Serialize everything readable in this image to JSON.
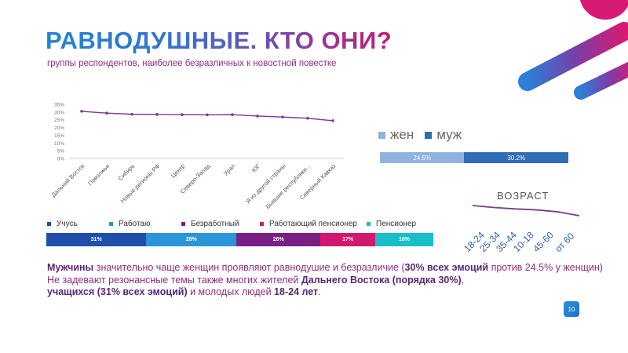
{
  "slide": {
    "title": "РАВНОДУШНЫЕ. КТО ОНИ?",
    "subtitle": "группы респондентов, наиболее безразличных к новостной повестке",
    "page_number": "10",
    "colors": {
      "blue": "#1f86d0",
      "purple": "#8e2d7f",
      "magenta": "#c21c77",
      "cyan": "#18bfc9"
    }
  },
  "chart_data": [
    {
      "type": "line",
      "categories": [
        "Дальний Восток",
        "Поволжье",
        "Сибирь",
        "Новые регионы РФ",
        "Центр",
        "Северо-Запад",
        "Урал",
        "ЮГ",
        "Я из другой страны",
        "Бывшие республики...",
        "Северный Кавказ"
      ],
      "values": [
        30.5,
        29.3,
        28.6,
        28.5,
        28.3,
        28.2,
        28.3,
        27.4,
        26.8,
        26.0,
        24.4
      ],
      "ylim": [
        0,
        35
      ],
      "y_ticks": [
        "35%",
        "30%",
        "25%",
        "20%",
        "15%",
        "10%",
        "5%",
        "0%"
      ],
      "color": "#7a3a8c",
      "grid": false
    },
    {
      "type": "bar",
      "orientation": "stacked-horizontal",
      "series": [
        {
          "name": "жен",
          "value": 24.5,
          "label": "24.5%",
          "color": "#8fb3de"
        },
        {
          "name": "муж",
          "value": 30.2,
          "label": "30.2%",
          "color": "#2f6db6"
        }
      ]
    },
    {
      "type": "line",
      "title": "ВОЗРАСТ",
      "categories": [
        "18-24",
        "25-34",
        "35-44",
        "10-18",
        "45-60",
        "от 60"
      ],
      "values": [
        31,
        30.6,
        30.3,
        30.1,
        29.7,
        28.9
      ],
      "color": "#7a3a8c"
    },
    {
      "type": "bar",
      "orientation": "stacked-horizontal",
      "series": [
        {
          "name": "Учусь",
          "value": 31,
          "label": "31%",
          "color": "#1f4faa"
        },
        {
          "name": "Работаю",
          "value": 28,
          "label": "28%",
          "color": "#2a95d8"
        },
        {
          "name": "Безработный",
          "value": 26,
          "label": "26%",
          "color": "#7a1f84"
        },
        {
          "name": "Работающий пенсионер",
          "value": 17,
          "label": "17%",
          "color": "#d2186e"
        },
        {
          "name": "Пенсионер",
          "value": 18,
          "label": "18%",
          "color": "#18bfc9"
        }
      ]
    }
  ],
  "text": {
    "l1_b1": "Мужчины",
    "l1_t1": " значительно чаще женщин проявляют равнодушие и безразличие (",
    "l1_b2": "30% всех эмоций",
    "l1_t2": " против 24.5% у женщин)",
    "l2_t1": "Не задевают резонансные темы также многих жителей ",
    "l2_b1": "Дальнего Востока (порядка 30%)",
    "l2_t2": ",",
    "l3_b1": "учащихся (31% всех эмоций)",
    "l3_t1": " и молодых людей ",
    "l3_b2": "18-24 лет",
    "l3_t2": "."
  }
}
